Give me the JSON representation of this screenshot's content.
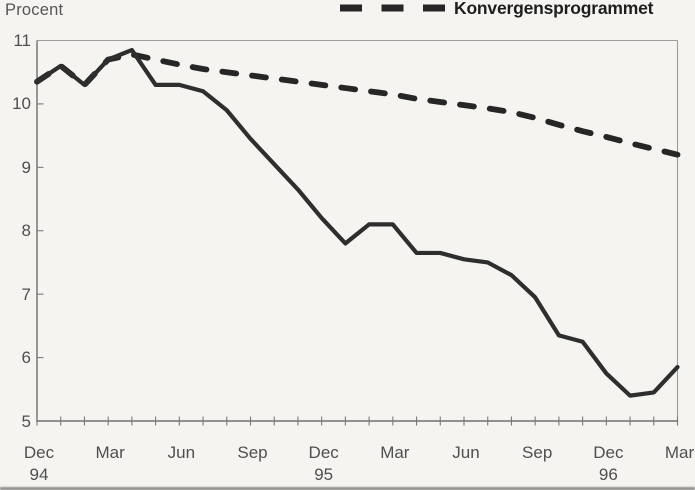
{
  "chart_data": {
    "type": "line",
    "title": "",
    "ylabel": "Procent",
    "xlabel": "",
    "ylim": [
      5,
      11
    ],
    "yticks": [
      11,
      10,
      9,
      8,
      7,
      6,
      5
    ],
    "grid": false,
    "legend_position": "top-right",
    "x_months_span": 28,
    "x_tick_labels": [
      {
        "month": "Dec",
        "index": 0,
        "year": "94"
      },
      {
        "month": "Mar",
        "index": 3
      },
      {
        "month": "Jun",
        "index": 6
      },
      {
        "month": "Sep",
        "index": 9
      },
      {
        "month": "Dec",
        "index": 12,
        "year": "95"
      },
      {
        "month": "Mar",
        "index": 15
      },
      {
        "month": "Jun",
        "index": 18
      },
      {
        "month": "Sep",
        "index": 21
      },
      {
        "month": "Dec",
        "index": 24,
        "year": "96"
      },
      {
        "month": "Mar",
        "index": 27
      }
    ],
    "series": [
      {
        "name": "",
        "line_style": "solid",
        "values": [
          10.35,
          10.6,
          10.3,
          10.7,
          10.85,
          10.3,
          10.3,
          10.2,
          9.9,
          9.45,
          9.05,
          8.65,
          8.2,
          7.8,
          8.1,
          8.1,
          7.65,
          7.65,
          7.55,
          7.5,
          7.3,
          6.95,
          6.35,
          6.25,
          5.75,
          5.4,
          5.45,
          5.85
        ]
      },
      {
        "name": "Konvergensprogrammet",
        "line_style": "dashed",
        "values": [
          10.35,
          10.6,
          10.3,
          10.7,
          10.78,
          10.7,
          10.62,
          10.55,
          10.5,
          10.45,
          10.4,
          10.35,
          10.3,
          10.25,
          10.2,
          10.15,
          10.08,
          10.03,
          9.98,
          9.93,
          9.87,
          9.78,
          9.67,
          9.57,
          9.48,
          9.38,
          9.29,
          9.2
        ]
      }
    ]
  },
  "colors": {
    "line": "#2e2e2e",
    "dashed_line": "#262626",
    "axis_dark": "#6e6e6e",
    "axis_light": "#9c9c9c",
    "tick": "#7a7a7a",
    "label": "#4f4f4f",
    "background": "#f5f4f0"
  }
}
